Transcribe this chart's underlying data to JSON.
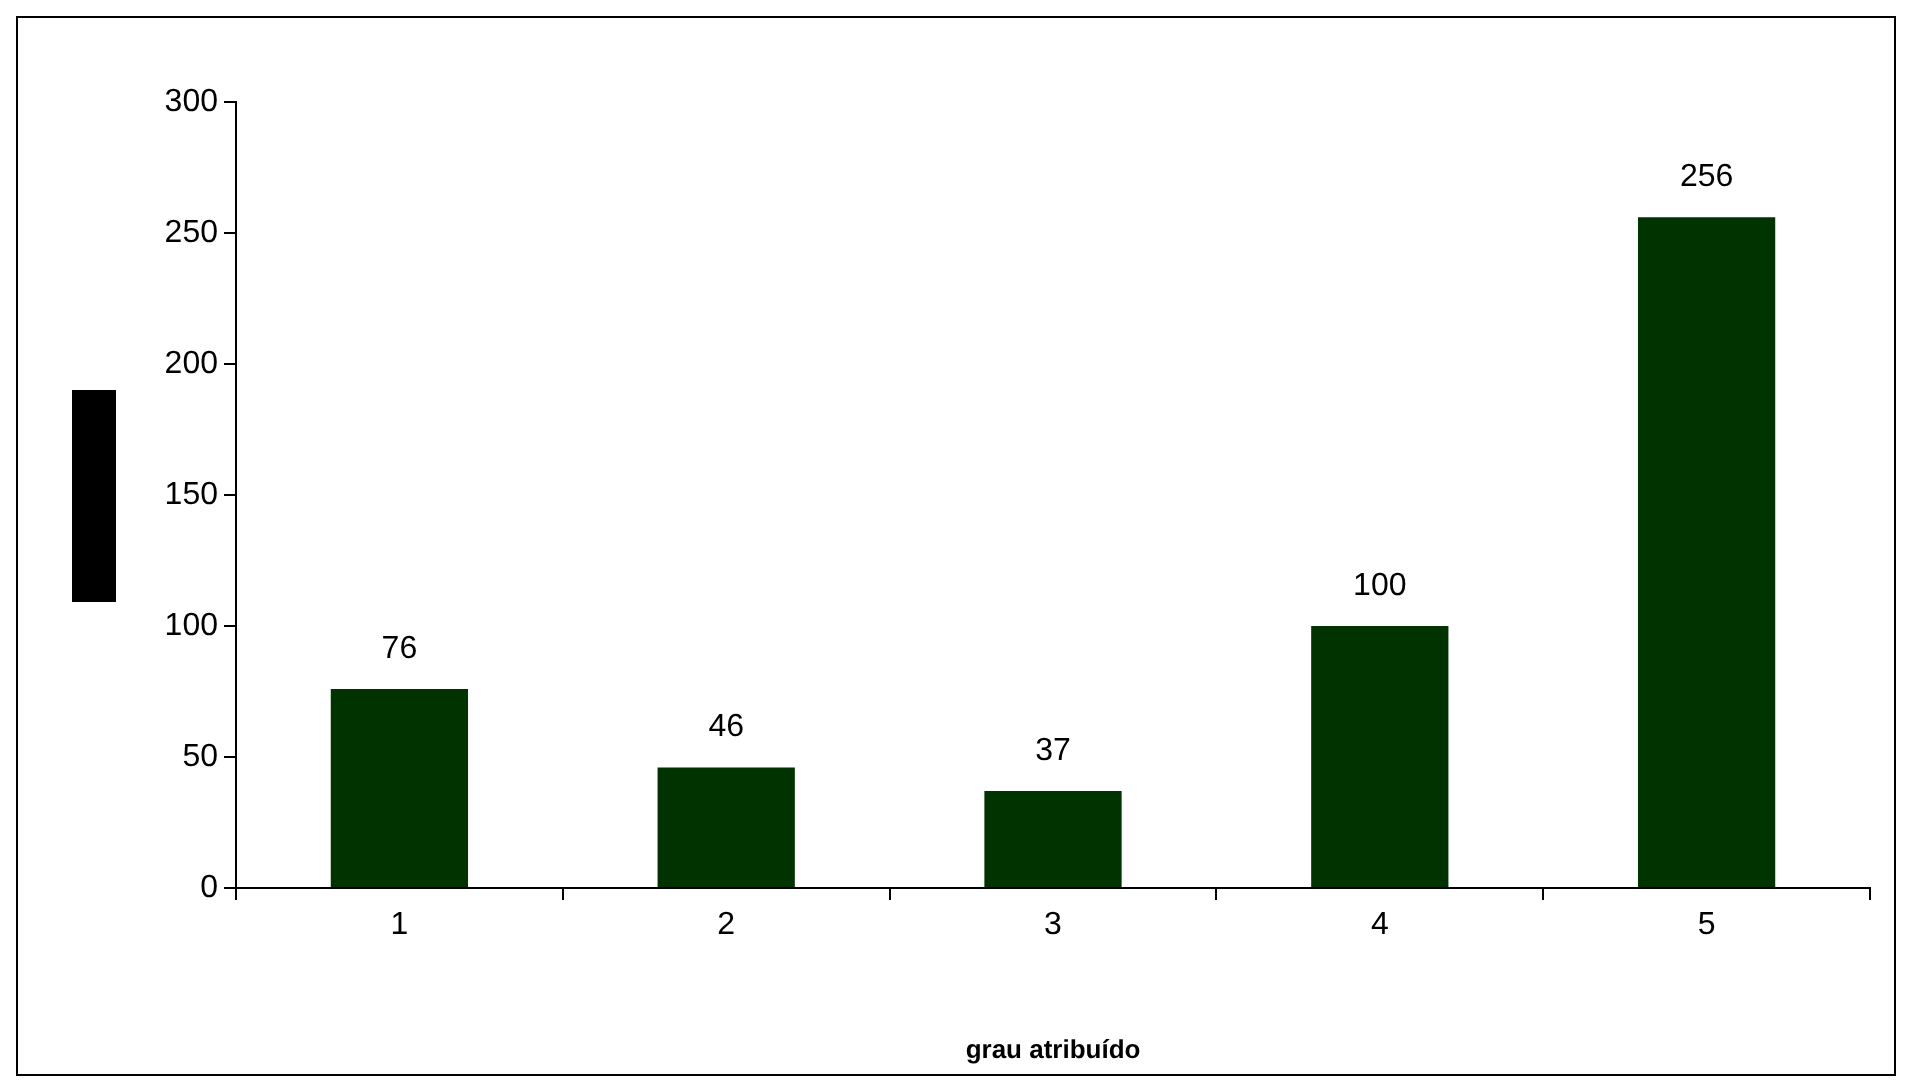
{
  "chart_data": {
    "type": "bar",
    "xlabel": "grau atribuído",
    "categories": [
      "1",
      "2",
      "3",
      "4",
      "5"
    ],
    "values": [
      76,
      46,
      37,
      100,
      256
    ],
    "color": "#003300",
    "ylim": [
      0,
      300
    ],
    "yticks": [
      0,
      50,
      100,
      150,
      200,
      250,
      300
    ],
    "grid": false,
    "legend": false,
    "data_labels": true
  }
}
